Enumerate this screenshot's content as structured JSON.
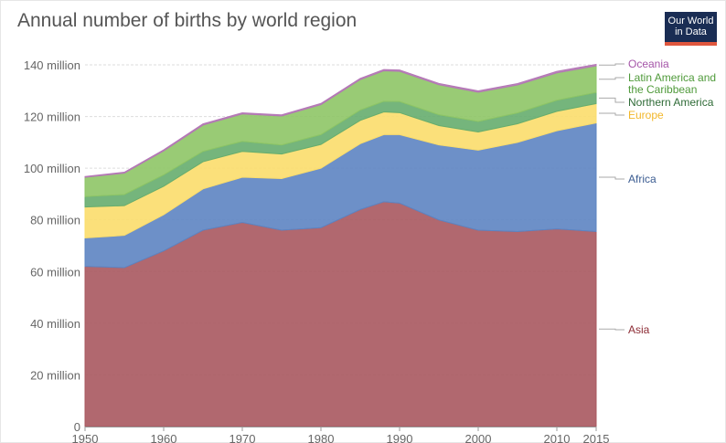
{
  "header": {
    "title": "Annual number of births by world region",
    "logo_line1": "Our World",
    "logo_line2": "in Data"
  },
  "chart_data": {
    "type": "area",
    "stacked": true,
    "title": "Annual number of births by world region",
    "xlabel": "",
    "ylabel": "",
    "x": [
      1950,
      1955,
      1960,
      1965,
      1970,
      1975,
      1980,
      1985,
      1988,
      1990,
      1995,
      2000,
      2005,
      2010,
      2015
    ],
    "xlim": [
      1950,
      2015
    ],
    "ylim": [
      0,
      140000000
    ],
    "x_ticks": [
      1950,
      1960,
      1970,
      1980,
      1990,
      2000,
      2010,
      2015
    ],
    "x_tick_labels": [
      "1950",
      "1960",
      "1970",
      "1980",
      "1990",
      "2000",
      "2010",
      "2015"
    ],
    "y_ticks": [
      0,
      20000000,
      40000000,
      60000000,
      80000000,
      100000000,
      120000000,
      140000000
    ],
    "y_tick_labels": [
      "0",
      "20 million",
      "40 million",
      "60 million",
      "80 million",
      "100 million",
      "120 million",
      "140 million"
    ],
    "grid": "horizontal dotted",
    "legend": "right, labels at series end",
    "series": [
      {
        "name": "Asia",
        "color": "#a9585f",
        "values": [
          62000000,
          61500000,
          68000000,
          76000000,
          79000000,
          76000000,
          77000000,
          84000000,
          87000000,
          86500000,
          80000000,
          76000000,
          75500000,
          76500000,
          75500000
        ]
      },
      {
        "name": "Africa",
        "color": "#5d84c2",
        "values": [
          11000000,
          12500000,
          14000000,
          16000000,
          17500000,
          20000000,
          23000000,
          25500000,
          26000000,
          26500000,
          29000000,
          31000000,
          34500000,
          38000000,
          42000000
        ]
      },
      {
        "name": "Europe",
        "color": "#fbdd6b",
        "values": [
          12000000,
          11500000,
          11000000,
          10500000,
          10000000,
          9500000,
          9200000,
          9000000,
          8800000,
          8500000,
          7500000,
          7000000,
          7200000,
          7500000,
          7500000
        ]
      },
      {
        "name": "Northern America",
        "color": "#66ad6e",
        "values": [
          4000000,
          4300000,
          4400000,
          4000000,
          3900000,
          3500000,
          3800000,
          4000000,
          4100000,
          4300000,
          4200000,
          4100000,
          4200000,
          4300000,
          4300000
        ]
      },
      {
        "name": "Latin America and the Caribbean",
        "color": "#8ec566",
        "values": [
          7500000,
          8300000,
          9300000,
          10200000,
          10600000,
          11200000,
          11600000,
          11800000,
          11800000,
          11700000,
          11600000,
          11300000,
          10800000,
          10600000,
          10300000
        ]
      },
      {
        "name": "Oceania",
        "color": "#b478b6",
        "values": [
          300000,
          350000,
          400000,
          450000,
          450000,
          450000,
          450000,
          480000,
          500000,
          500000,
          520000,
          520000,
          550000,
          580000,
          600000
        ]
      }
    ],
    "legend_text_colors": {
      "Oceania": "#a555a8",
      "Latin America and the Caribbean": "#4f9a3a",
      "Northern America": "#2f6b37",
      "Europe": "#f2b72a",
      "Africa": "#3b5c91",
      "Asia": "#8d2c35"
    }
  }
}
